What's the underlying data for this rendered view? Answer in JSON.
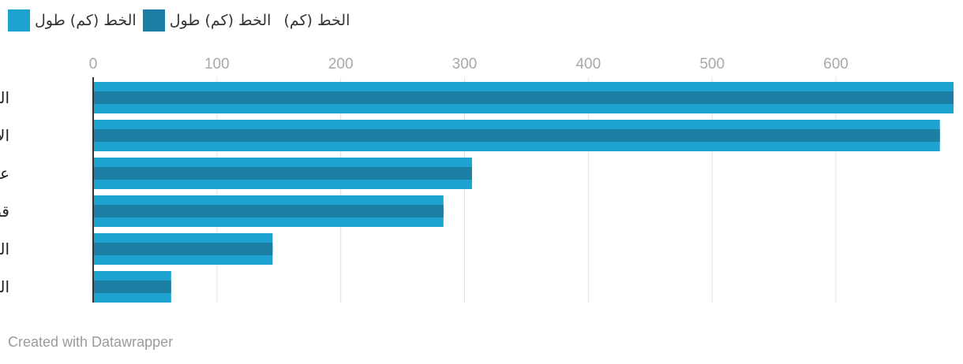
{
  "chart_data": {
    "type": "bar",
    "orientation": "horizontal",
    "categories": [
      "السعودية",
      "الإمارات",
      "عمان",
      "قطر",
      "الكويت",
      "البحرين"
    ],
    "series": [
      {
        "name": "الخط (كم) طول",
        "color": "#1ea3d1",
        "values": [
          695,
          684,
          306,
          283,
          145,
          63
        ]
      },
      {
        "name": "الخط (كم) طول",
        "color": "#1e7fa6",
        "values": [
          695,
          684,
          306,
          283,
          145,
          63
        ]
      }
    ],
    "legend_extra": "الخط (كم)",
    "xlim": [
      0,
      695
    ],
    "xticks": [
      0,
      100,
      200,
      300,
      400,
      500,
      600
    ],
    "grid": true,
    "legend_position": "top-left"
  },
  "credit": "Created with Datawrapper"
}
